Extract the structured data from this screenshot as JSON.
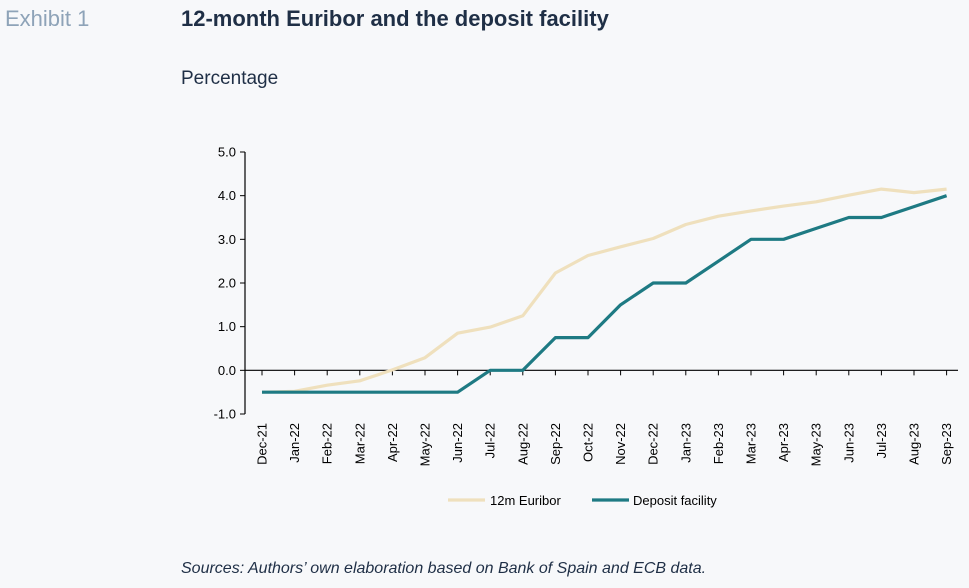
{
  "header": {
    "exhibit": "Exhibit 1",
    "title": "12-month Euribor and the deposit facility",
    "subtitle": "Percentage"
  },
  "footer": {
    "source": "Sources: Authors’ own elaboration based on Bank of Spain and ECB data."
  },
  "chart_data": {
    "type": "line",
    "x": [
      "Dec-21",
      "Jan-22",
      "Feb-22",
      "Mar-22",
      "Apr-22",
      "May-22",
      "Jun-22",
      "Jul-22",
      "Aug-22",
      "Sep-22",
      "Oct-22",
      "Nov-22",
      "Dec-22",
      "Jan-23",
      "Feb-23",
      "Mar-23",
      "Apr-23",
      "May-23",
      "Jun-23",
      "Jul-23",
      "Aug-23",
      "Sep-23"
    ],
    "ylim": [
      -1.0,
      5.0
    ],
    "yticks": [
      5.0,
      4.0,
      3.0,
      2.0,
      1.0,
      0.0,
      -1.0
    ],
    "grid": false,
    "legend_position": "bottom",
    "series": [
      {
        "name": "12m Euribor",
        "color": "#efe0bd",
        "values": [
          -0.5,
          -0.48,
          -0.34,
          -0.24,
          0.01,
          0.29,
          0.85,
          0.99,
          1.25,
          2.23,
          2.63,
          2.83,
          3.02,
          3.34,
          3.53,
          3.65,
          3.76,
          3.86,
          4.01,
          4.15,
          4.07,
          4.15
        ]
      },
      {
        "name": "Deposit facility",
        "color": "#1e7a83",
        "values": [
          -0.5,
          -0.5,
          -0.5,
          -0.5,
          -0.5,
          -0.5,
          -0.5,
          0.0,
          0.0,
          0.75,
          0.75,
          1.5,
          2.0,
          2.0,
          2.5,
          3.0,
          3.0,
          3.25,
          3.5,
          3.5,
          3.75,
          4.0
        ]
      }
    ]
  }
}
